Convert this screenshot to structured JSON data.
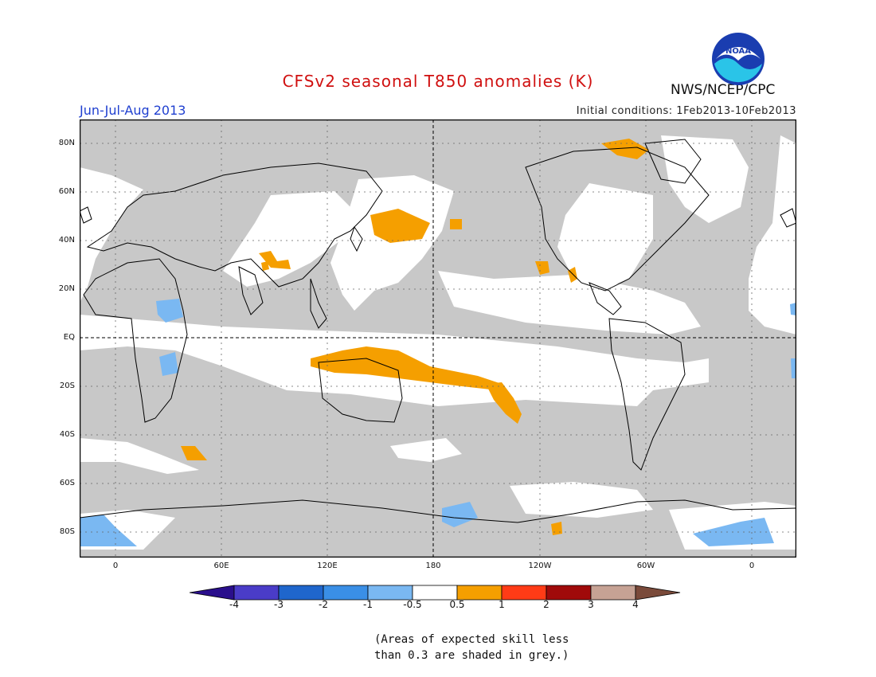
{
  "title": "CFSv2 seasonal T850 anomalies (K)",
  "period": "Jun-Jul-Aug 2013",
  "initial_conditions": "Initial conditions: 1Feb2013-10Feb2013",
  "agency": "NWS/NCEP/CPC",
  "logo_text": "NOAA",
  "map": {
    "lat_labels": [
      "80N",
      "60N",
      "40N",
      "20N",
      "EQ",
      "20S",
      "40S",
      "60S",
      "80S"
    ],
    "lon_labels": [
      "0",
      "60E",
      "120E",
      "180",
      "120W",
      "60W",
      "0"
    ]
  },
  "colorbar": {
    "labels": [
      "-4",
      "-3",
      "-2",
      "-1",
      "-0.5",
      "0.5",
      "1",
      "2",
      "3",
      "4"
    ],
    "colors": [
      "#2a0f8c",
      "#4a3cc8",
      "#1f66cc",
      "#3a8fe6",
      "#7ab8f2",
      "#ffffff",
      "#f59f00",
      "#ff3b16",
      "#a00a0a",
      "#c6a294",
      "#7a4a3a"
    ]
  },
  "note": [
    "(Areas of expected skill less",
    "than 0.3 are shaded in grey.)"
  ],
  "colors": {
    "grey_low_skill": "#c8c8c8",
    "orange": "#f59f00",
    "light_blue": "#7ab8f2"
  }
}
